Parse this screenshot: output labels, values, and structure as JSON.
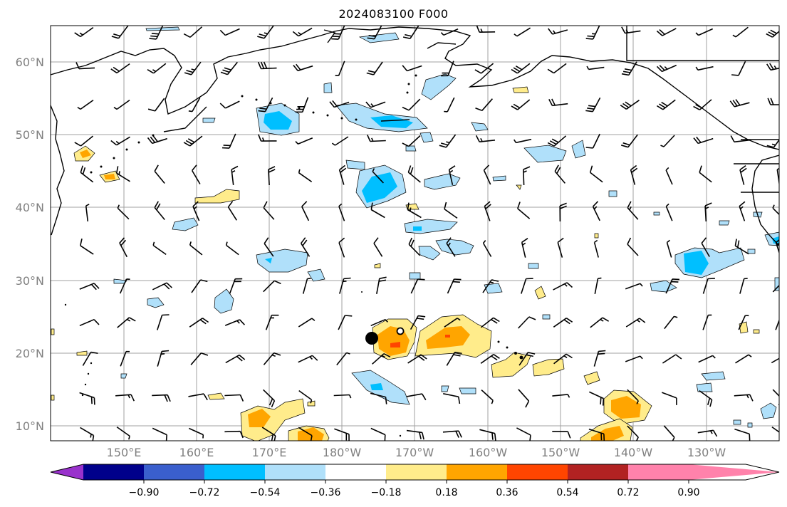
{
  "title": "2024083100 F000",
  "lat_labels": [
    "60°N",
    "50°N",
    "40°N",
    "30°N",
    "20°N",
    "10°N"
  ],
  "lon_labels": [
    "150°E",
    "160°E",
    "170°E",
    "180°W",
    "170°W",
    "160°W",
    "150°W",
    "140°W",
    "130°W"
  ],
  "colorbar": {
    "tick_labels": [
      "−0.90",
      "−0.72",
      "−0.54",
      "−0.36",
      "−0.18",
      "0.18",
      "0.36",
      "0.54",
      "0.72",
      "0.90"
    ],
    "colors": [
      "#9932cc",
      "#00008b",
      "#3a5fcd",
      "#00bfff",
      "#b0e0fa",
      "#ffffff",
      "#ffec8b",
      "#ffa500",
      "#ff4500",
      "#b22222",
      "#ff82ab"
    ]
  },
  "colors": {
    "coast": "#000000",
    "grid": "#a0a0a0",
    "label_gray": "#808080"
  },
  "markers": [
    {
      "name": "filled-circle-marker",
      "style": "filled"
    },
    {
      "name": "open-circle-marker",
      "style": "open"
    }
  ]
}
